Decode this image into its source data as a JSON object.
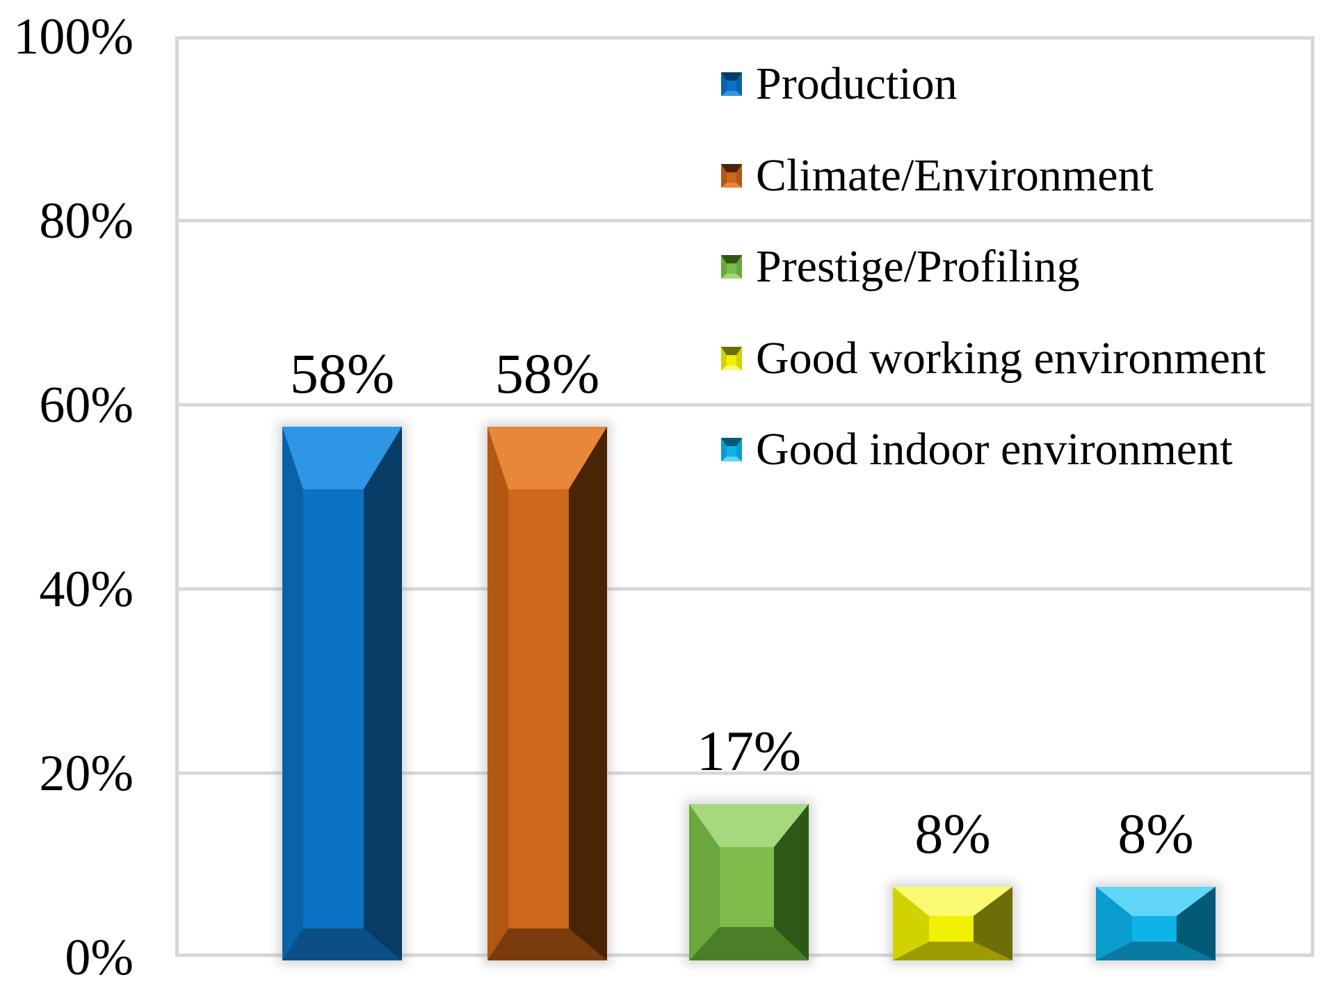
{
  "chart_data": {
    "type": "bar",
    "title": "",
    "xlabel": "",
    "ylabel": "",
    "categories": [
      "Production",
      "Climate/Environment",
      "Prestige/Profiling",
      "Good working environment",
      "Good indoor environment"
    ],
    "values": [
      58,
      58,
      17,
      8,
      8
    ],
    "data_labels": [
      "58%",
      "58%",
      "17%",
      "8%",
      "8%"
    ],
    "unit": "%",
    "ylim": [
      0,
      100
    ],
    "y_ticks": [
      {
        "label": "100%",
        "value": 100
      },
      {
        "label": "80%",
        "value": 80
      },
      {
        "label": "60%",
        "value": 60
      },
      {
        "label": "40%",
        "value": 40
      },
      {
        "label": "20%",
        "value": 20
      },
      {
        "label": "0%",
        "value": 0
      }
    ],
    "grid": true,
    "gridline_color": "#d9d9d9",
    "legend_position": "upper-right-inside",
    "bar_style": "3d-bevel",
    "series_colors": [
      {
        "name": "Production",
        "face": "#0b72c6",
        "top": "#2f96e6",
        "left": "#0a62a8",
        "right": "#063c66",
        "bottom": "#0b4f86"
      },
      {
        "name": "Climate/Environment",
        "face": "#cc671c",
        "top": "#e8873a",
        "left": "#b25812",
        "right": "#4a2406",
        "bottom": "#7a3c0c"
      },
      {
        "name": "Prestige/Profiling",
        "face": "#7cbc4b",
        "top": "#a6d87d",
        "left": "#69a83c",
        "right": "#2e5818",
        "bottom": "#4a7f28"
      },
      {
        "name": "Good working environment",
        "face": "#f0f000",
        "top": "#fafa72",
        "left": "#d2d200",
        "right": "#6e6e08",
        "bottom": "#9c9c00"
      },
      {
        "name": "Good indoor environment",
        "face": "#0db4e8",
        "top": "#62d6f6",
        "left": "#0a9ccc",
        "right": "#035a78",
        "bottom": "#0a7aa2"
      }
    ]
  },
  "legend": {
    "items": [
      {
        "label": "Production"
      },
      {
        "label": "Climate/Environment"
      },
      {
        "label": "Prestige/Profiling"
      },
      {
        "label": "Good working environment"
      },
      {
        "label": "Good indoor environment"
      }
    ]
  }
}
